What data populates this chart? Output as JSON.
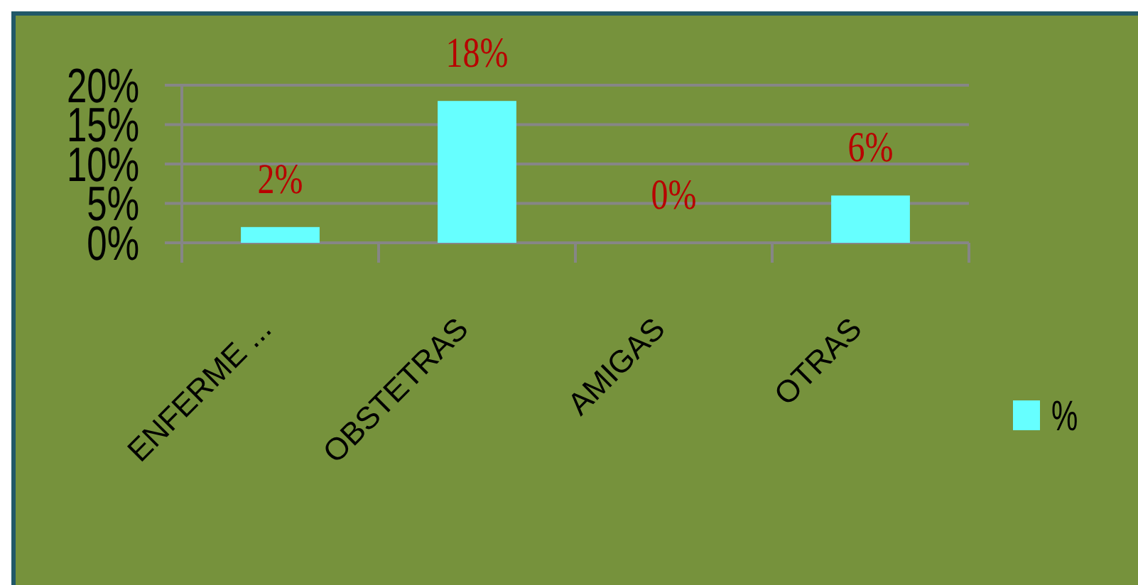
{
  "chart_data": {
    "type": "bar",
    "categories": [
      "ENFERME ...",
      "OBSTETRAS",
      "AMIGAS",
      "OTRAS"
    ],
    "series": [
      {
        "name": "%",
        "color": "#66ffff",
        "values": [
          2,
          18,
          0,
          6
        ],
        "value_labels": [
          "2%",
          "18%",
          "0%",
          "6%"
        ]
      }
    ],
    "ylim": [
      0,
      20
    ],
    "yticks": [
      {
        "value": 0,
        "label": "0%"
      },
      {
        "value": 5,
        "label": "5%"
      },
      {
        "value": 10,
        "label": "10%"
      },
      {
        "value": 15,
        "label": "15%"
      },
      {
        "value": 20,
        "label": "20%"
      }
    ],
    "grid": "y",
    "legend": "right"
  }
}
